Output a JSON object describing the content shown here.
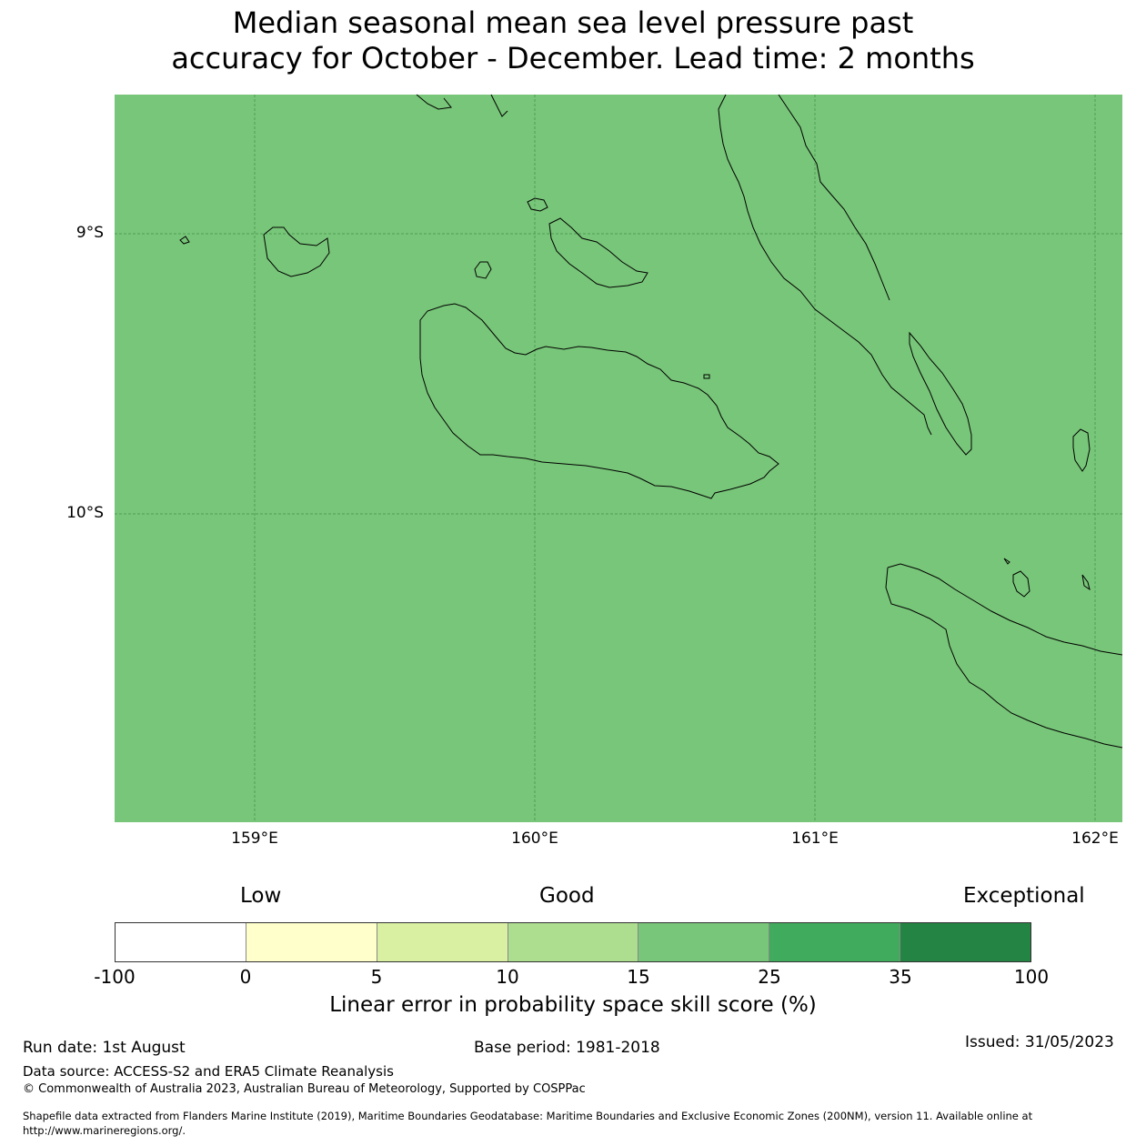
{
  "title": {
    "line1": "Median seasonal mean sea level pressure past",
    "line2": "accuracy for October - December. Lead time: 2 months"
  },
  "map": {
    "fill_color": "#78c679",
    "lat_labels": [
      "9°S",
      "10°S"
    ],
    "lon_labels": [
      "159°E",
      "160°E",
      "161°E",
      "162°E"
    ]
  },
  "colorbar": {
    "categories": [
      "Low",
      "Good",
      "Exceptional"
    ],
    "colors": [
      "#ffffff",
      "#ffffcc",
      "#d9f0a3",
      "#addd8e",
      "#78c679",
      "#41ab5d",
      "#238443"
    ],
    "ticks": [
      "-100",
      "0",
      "5",
      "10",
      "15",
      "25",
      "35",
      "100"
    ],
    "label": "Linear error in probability space skill score (%)"
  },
  "footer": {
    "run_date": "Run date: 1st August",
    "base_period": "Base period: 1981-2018",
    "issued": "Issued: 31/05/2023",
    "data_source": "Data source: ACCESS-S2 and ERA5 Climate Reanalysis",
    "copyright": "© Commonwealth of Australia 2023, Australian Bureau of Meteorology, Supported by COSPPac",
    "shapefile_line1": "Shapefile data extracted from Flanders Marine Institute (2019), Maritime Boundaries Geodatabase: Maritime Boundaries and Exclusive Economic Zones (200NM), version 11. Available online at",
    "shapefile_line2": "http://www.marineregions.org/."
  }
}
